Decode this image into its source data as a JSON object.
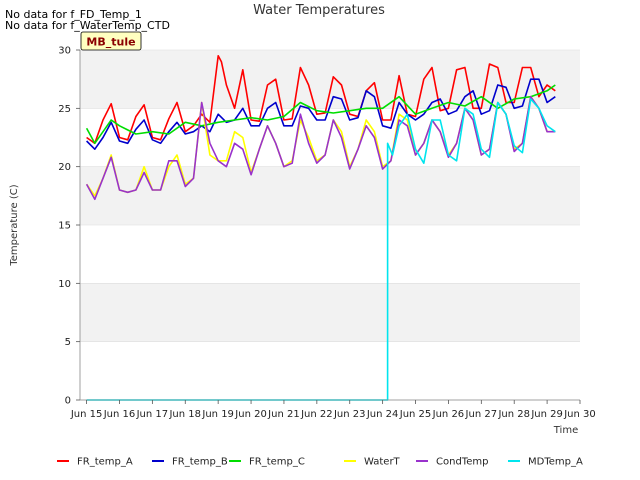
{
  "notes": [
    "No data for f_FD_Temp_1",
    "No data for f_WaterTemp_CTD"
  ],
  "site_label": "MB_tule",
  "chart_data": {
    "type": "line",
    "title": "Water Temperatures",
    "xlabel": "Time",
    "ylabel": "Temperature (C)",
    "xlim": [
      14.8,
      30.0
    ],
    "ylim": [
      0,
      30
    ],
    "x_ticks": [
      15,
      16,
      17,
      18,
      19,
      20,
      21,
      22,
      23,
      24,
      25,
      26,
      27,
      28,
      29,
      30
    ],
    "x_tick_labels": [
      "Jun 15",
      "Jun 16",
      "Jun 17",
      "Jun 18",
      "Jun 19",
      "Jun 20",
      "Jun 21",
      "Jun 22",
      "Jun 23",
      "Jun 24",
      "Jun 25",
      "Jun 26",
      "Jun 27",
      "Jun 28",
      "Jun 29",
      "Jun 30"
    ],
    "y_ticks": [
      0,
      5,
      10,
      15,
      20,
      25,
      30
    ],
    "grid": "horizontal bands",
    "legend_position": "bottom",
    "series": [
      {
        "name": "FR_temp_A",
        "color": "#ff0000",
        "x": [
          15.0,
          15.25,
          15.5,
          15.75,
          16.0,
          16.25,
          16.5,
          16.75,
          17.0,
          17.25,
          17.5,
          17.75,
          18.0,
          18.25,
          18.5,
          18.75,
          19.0,
          19.1,
          19.25,
          19.5,
          19.75,
          20.0,
          20.25,
          20.5,
          20.75,
          21.0,
          21.25,
          21.5,
          21.75,
          22.0,
          22.25,
          22.5,
          22.75,
          23.0,
          23.25,
          23.5,
          23.75,
          24.0,
          24.25,
          24.5,
          24.75,
          25.0,
          25.25,
          25.5,
          25.75,
          26.0,
          26.25,
          26.5,
          26.75,
          27.0,
          27.25,
          27.5,
          27.75,
          28.0,
          28.25,
          28.5,
          28.75,
          29.0,
          29.25
        ],
        "values": [
          22.5,
          22.0,
          24.0,
          25.4,
          22.5,
          22.3,
          24.3,
          25.3,
          22.5,
          22.3,
          24.1,
          25.5,
          23.0,
          23.5,
          24.5,
          23.8,
          29.5,
          29.0,
          27.0,
          25.0,
          28.3,
          24.0,
          23.9,
          27.0,
          27.5,
          24.0,
          24.1,
          28.5,
          27.0,
          24.5,
          24.6,
          27.7,
          27.0,
          24.5,
          24.3,
          26.5,
          27.2,
          24.0,
          24.0,
          27.8,
          24.5,
          24.3,
          27.5,
          28.5,
          24.8,
          25.0,
          28.3,
          28.5,
          25.0,
          25.0,
          28.8,
          28.5,
          25.5,
          25.5,
          28.5,
          28.5,
          26.0,
          27.0,
          26.5
        ]
      },
      {
        "name": "FR_temp_B",
        "color": "#0000cc",
        "x": [
          15.0,
          15.25,
          15.5,
          15.75,
          16.0,
          16.25,
          16.5,
          16.75,
          17.0,
          17.25,
          17.5,
          17.75,
          18.0,
          18.25,
          18.5,
          18.75,
          19.0,
          19.25,
          19.5,
          19.75,
          20.0,
          20.25,
          20.5,
          20.75,
          21.0,
          21.25,
          21.5,
          21.75,
          22.0,
          22.25,
          22.5,
          22.75,
          23.0,
          23.25,
          23.5,
          23.75,
          24.0,
          24.25,
          24.5,
          24.75,
          25.0,
          25.25,
          25.5,
          25.75,
          26.0,
          26.25,
          26.5,
          26.75,
          27.0,
          27.25,
          27.5,
          27.75,
          28.0,
          28.25,
          28.5,
          28.75,
          29.0,
          29.25
        ],
        "values": [
          22.2,
          21.5,
          22.5,
          23.8,
          22.2,
          22.0,
          23.2,
          24.0,
          22.3,
          22.0,
          23.0,
          23.8,
          22.8,
          23.0,
          23.5,
          23.0,
          24.5,
          23.8,
          24.0,
          25.0,
          23.5,
          23.5,
          25.0,
          25.5,
          23.5,
          23.5,
          25.2,
          25.0,
          24.0,
          24.0,
          26.0,
          25.8,
          24.0,
          24.2,
          26.5,
          26.0,
          23.5,
          23.3,
          25.5,
          24.5,
          24.0,
          24.5,
          25.5,
          25.8,
          24.5,
          24.8,
          26.0,
          26.5,
          24.5,
          24.8,
          27.0,
          26.8,
          25.0,
          25.2,
          27.5,
          27.5,
          25.5,
          26.0
        ]
      },
      {
        "name": "FR_temp_C",
        "color": "#00dd00",
        "x": [
          15.0,
          15.25,
          15.5,
          15.75,
          16.0,
          16.5,
          17.0,
          17.5,
          18.0,
          18.5,
          19.0,
          19.5,
          20.0,
          20.5,
          21.0,
          21.5,
          22.0,
          22.5,
          23.0,
          23.5,
          24.0,
          24.5,
          25.0,
          25.5,
          26.0,
          26.5,
          27.0,
          27.5,
          28.0,
          28.5,
          29.0,
          29.25
        ],
        "values": [
          23.3,
          22.0,
          23.0,
          24.0,
          23.5,
          22.8,
          23.0,
          22.8,
          23.8,
          23.5,
          23.8,
          24.0,
          24.2,
          24.0,
          24.3,
          25.5,
          24.8,
          24.6,
          24.8,
          25.0,
          25.0,
          26.0,
          24.5,
          25.0,
          25.5,
          25.2,
          26.0,
          25.0,
          25.8,
          26.0,
          26.5,
          27.0
        ]
      },
      {
        "name": "WaterT",
        "color": "#ffff00",
        "x": [
          15.0,
          15.25,
          15.5,
          15.75,
          16.0,
          16.25,
          16.5,
          16.75,
          17.0,
          17.25,
          17.5,
          17.75,
          18.0,
          18.25,
          18.5,
          18.75,
          19.0,
          19.25,
          19.5,
          19.75,
          20.0,
          20.25,
          20.5,
          20.75,
          21.0,
          21.25,
          21.5,
          21.75,
          22.0,
          22.25,
          22.5,
          22.75,
          23.0,
          23.25,
          23.5,
          23.75,
          24.0,
          24.25,
          24.5,
          24.75,
          25.0,
          25.25,
          25.5,
          25.75,
          26.0,
          26.25,
          26.5,
          26.75,
          27.0,
          27.25,
          27.5,
          27.75,
          28.0,
          28.25,
          28.5,
          28.75,
          29.0,
          29.25
        ],
        "values": [
          18.5,
          17.5,
          19.0,
          21.0,
          18.0,
          17.8,
          18.0,
          20.0,
          18.0,
          18.0,
          20.0,
          21.0,
          18.5,
          19.0,
          25.5,
          21.0,
          20.5,
          20.5,
          23.0,
          22.5,
          19.5,
          21.5,
          23.5,
          22.0,
          20.0,
          20.5,
          24.0,
          22.5,
          20.5,
          21.0,
          24.0,
          23.0,
          20.0,
          21.5,
          24.0,
          23.0,
          20.0,
          20.5,
          24.5,
          24.0,
          21.0,
          22.0,
          24.0,
          23.0,
          21.0,
          22.0,
          25.0,
          24.0,
          21.0,
          21.5,
          25.5,
          24.5,
          21.5,
          22.0,
          26.0,
          25.0,
          23.0,
          23.0
        ]
      },
      {
        "name": "CondTemp",
        "color": "#9932cc",
        "x": [
          15.0,
          15.25,
          15.5,
          15.75,
          16.0,
          16.25,
          16.5,
          16.75,
          17.0,
          17.25,
          17.5,
          17.75,
          18.0,
          18.25,
          18.5,
          18.75,
          19.0,
          19.25,
          19.5,
          19.75,
          20.0,
          20.25,
          20.5,
          20.75,
          21.0,
          21.25,
          21.5,
          21.75,
          22.0,
          22.25,
          22.5,
          22.75,
          23.0,
          23.25,
          23.5,
          23.75,
          24.0,
          24.25,
          24.5,
          24.75,
          25.0,
          25.25,
          25.5,
          25.75,
          26.0,
          26.25,
          26.5,
          26.75,
          27.0,
          27.25,
          27.5,
          27.75,
          28.0,
          28.25,
          28.5,
          28.75,
          29.0,
          29.25
        ],
        "values": [
          18.5,
          17.2,
          19.0,
          20.8,
          18.0,
          17.8,
          18.0,
          19.5,
          18.0,
          18.0,
          20.5,
          20.5,
          18.3,
          19.0,
          25.5,
          22.0,
          20.5,
          20.0,
          22.0,
          21.5,
          19.3,
          21.5,
          23.5,
          22.0,
          20.0,
          20.3,
          24.5,
          22.0,
          20.3,
          21.0,
          24.0,
          22.5,
          19.8,
          21.5,
          23.5,
          22.5,
          19.8,
          20.5,
          24.0,
          23.5,
          21.0,
          22.0,
          24.0,
          23.0,
          20.8,
          22.0,
          25.0,
          24.0,
          21.0,
          21.5,
          25.5,
          24.5,
          21.3,
          22.0,
          26.0,
          25.0,
          23.0,
          23.0
        ]
      },
      {
        "name": "MDTemp_A",
        "color": "#00e5ee",
        "x": [
          15.0,
          16.0,
          17.0,
          18.0,
          19.0,
          20.0,
          21.0,
          22.0,
          23.0,
          24.0,
          24.15,
          24.15,
          24.3,
          24.5,
          24.75,
          25.0,
          25.25,
          25.5,
          25.75,
          26.0,
          26.25,
          26.5,
          26.75,
          27.0,
          27.25,
          27.5,
          27.75,
          28.0,
          28.25,
          28.5,
          28.75,
          29.0,
          29.25
        ],
        "values": [
          0,
          0,
          0,
          0,
          0,
          0,
          0,
          0,
          0,
          0,
          0,
          22.0,
          21.0,
          23.5,
          24.5,
          21.5,
          20.3,
          24.0,
          24.0,
          21.0,
          20.5,
          25.0,
          24.5,
          21.5,
          20.8,
          25.5,
          24.5,
          21.8,
          21.2,
          25.8,
          25.0,
          23.5,
          23.0
        ]
      }
    ]
  }
}
